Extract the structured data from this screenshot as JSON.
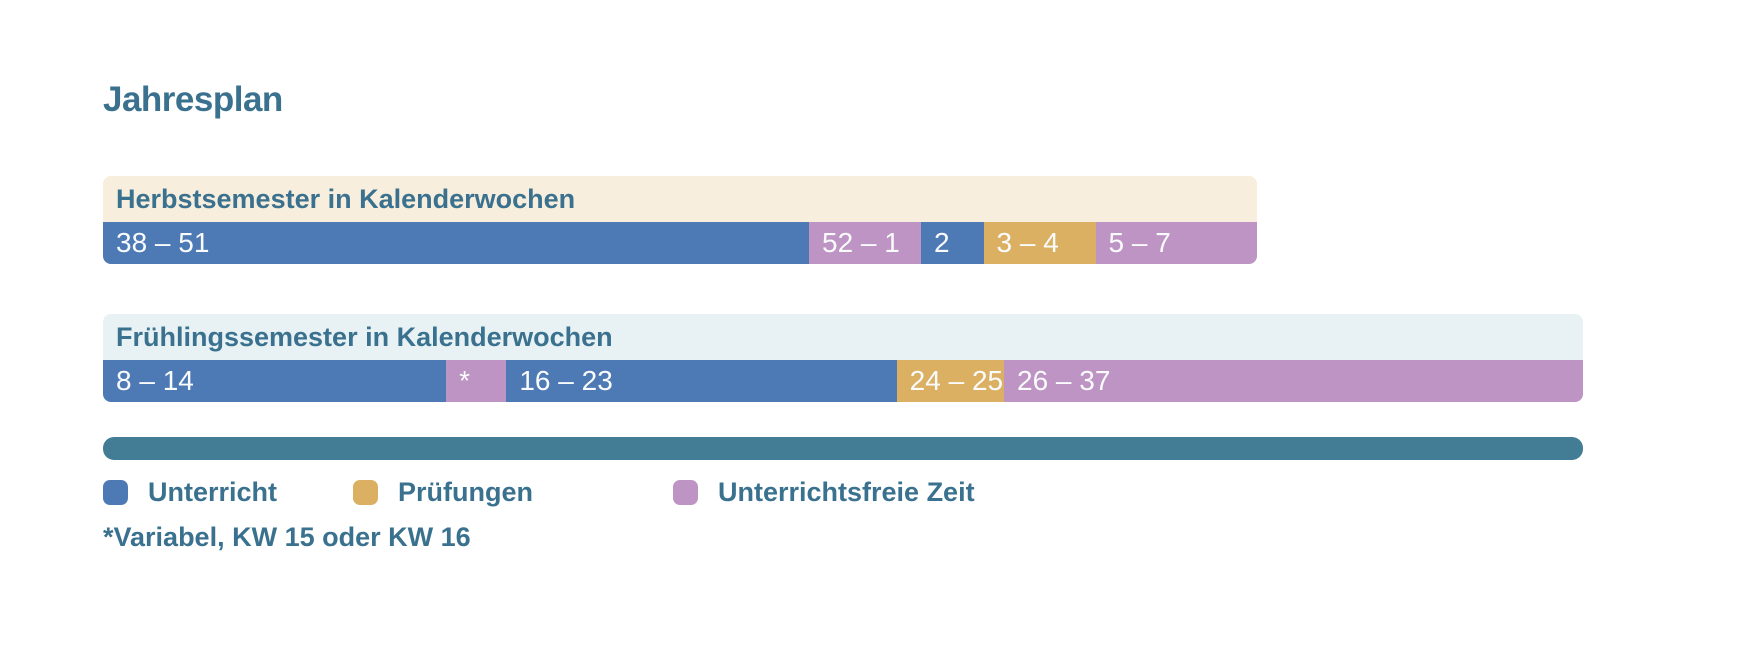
{
  "title": "Jahresplan",
  "colors": {
    "text_teal": "#3a718e",
    "bar_label_text": "#fafbfc",
    "unterricht_blue": "#4d79b4",
    "pruefungen_gold": "#dbb062",
    "frei_purple": "#bd94c3",
    "timeline_teal": "#437d95",
    "herbst_header_bg": "#f7eede",
    "fruehling_header_bg": "#e8f2f5",
    "background": "#ffffff"
  },
  "chart_data": {
    "type": "bar",
    "title": "Jahresplan",
    "subtitle": "",
    "unit": "Kalenderwochen",
    "legend_position": "bottom",
    "grid": false,
    "bars": [
      {
        "label": "Herbstsemester in Kalenderwochen",
        "header_bg": "#f7eede",
        "total_weeks": 22,
        "segments": [
          {
            "label": "38 – 51",
            "weeks": 14,
            "category": "Unterricht"
          },
          {
            "label": "52 – 1",
            "weeks": 2,
            "category": "Unterrichtsfreie Zeit"
          },
          {
            "label": "2",
            "weeks": 1,
            "category": "Unterricht"
          },
          {
            "label": "3 – 4",
            "weeks": 2,
            "category": "Prüfungen"
          },
          {
            "label": "5 – 7",
            "weeks": 3,
            "category": "Unterrichtsfreie Zeit"
          }
        ]
      },
      {
        "label": "Frühlingssemester in Kalenderwochen",
        "header_bg": "#e8f2f5",
        "total_weeks": 30,
        "segments": [
          {
            "label": "8 – 14",
            "weeks": 7,
            "category": "Unterricht"
          },
          {
            "label": "*",
            "weeks": 1,
            "category": "Unterrichtsfreie Zeit"
          },
          {
            "label": "16 – 23",
            "weeks": 8,
            "category": "Unterricht"
          },
          {
            "label": "24 – 25",
            "weeks": 2,
            "category": "Prüfungen"
          },
          {
            "label": "26 – 37",
            "weeks": 12,
            "category": "Unterrichtsfreie Zeit"
          }
        ]
      }
    ],
    "legend": [
      {
        "label": "Unterricht",
        "color": "#4d79b4"
      },
      {
        "label": "Prüfungen",
        "color": "#dbb062"
      },
      {
        "label": "Unterrichtsfreie Zeit",
        "color": "#bd94c3"
      }
    ],
    "timeline_bar_color": "#437d95",
    "footnote": "*Variabel, KW 15 oder KW 16"
  }
}
